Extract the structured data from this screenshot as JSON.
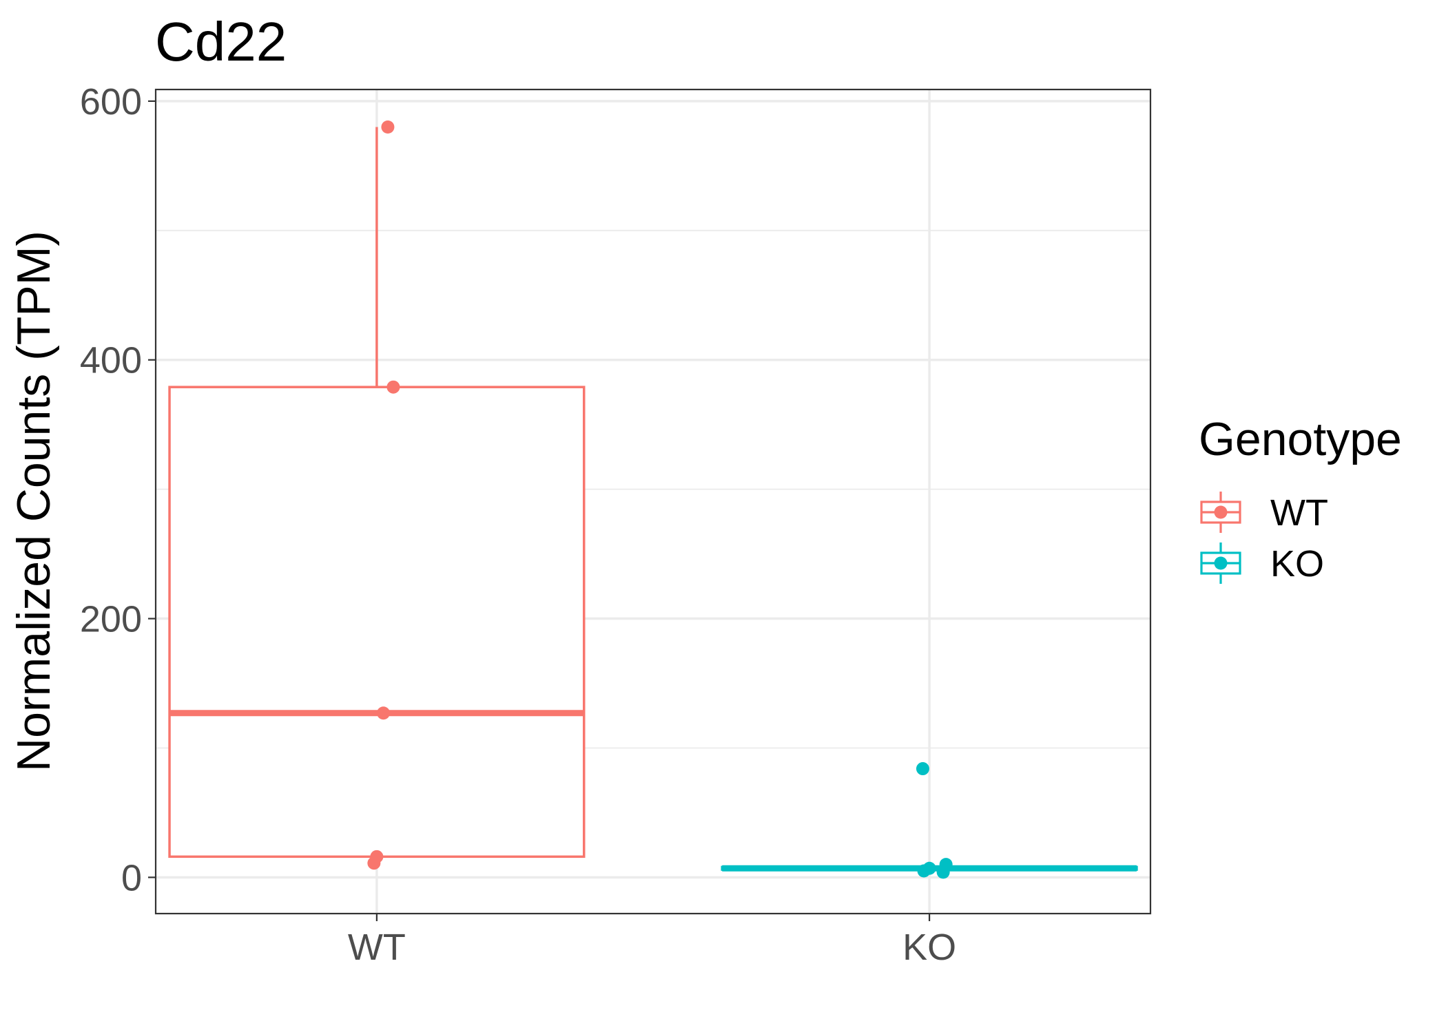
{
  "chart_data": {
    "type": "box",
    "title": "Cd22",
    "xlabel": "",
    "ylabel": "Normalized Counts (TPM)",
    "ylim": [
      -28,
      609
    ],
    "yticks": [
      0,
      200,
      400,
      600
    ],
    "categories": [
      "WT",
      "KO"
    ],
    "legend": {
      "title": "Genotype",
      "position": "right"
    },
    "grid": true,
    "series": [
      {
        "name": "WT",
        "color": "#F8766D",
        "box": {
          "min": 11,
          "q1": 16,
          "median": 127,
          "q3": 379,
          "max": 580
        },
        "points": [
          {
            "x_offset": 0.02,
            "y": 580
          },
          {
            "x_offset": 0.03,
            "y": 379
          },
          {
            "x_offset": 0.012,
            "y": 127
          },
          {
            "x_offset": 0.0,
            "y": 16
          },
          {
            "x_offset": -0.005,
            "y": 11
          }
        ]
      },
      {
        "name": "KO",
        "color": "#00BFC4",
        "box": {
          "min": 4,
          "q1": 6,
          "median": 7,
          "q3": 8,
          "max": 10
        },
        "points": [
          {
            "x_offset": -0.012,
            "y": 84
          },
          {
            "x_offset": -0.01,
            "y": 5
          },
          {
            "x_offset": 0.0,
            "y": 7
          },
          {
            "x_offset": 0.025,
            "y": 4
          },
          {
            "x_offset": 0.03,
            "y": 10
          }
        ]
      }
    ]
  }
}
